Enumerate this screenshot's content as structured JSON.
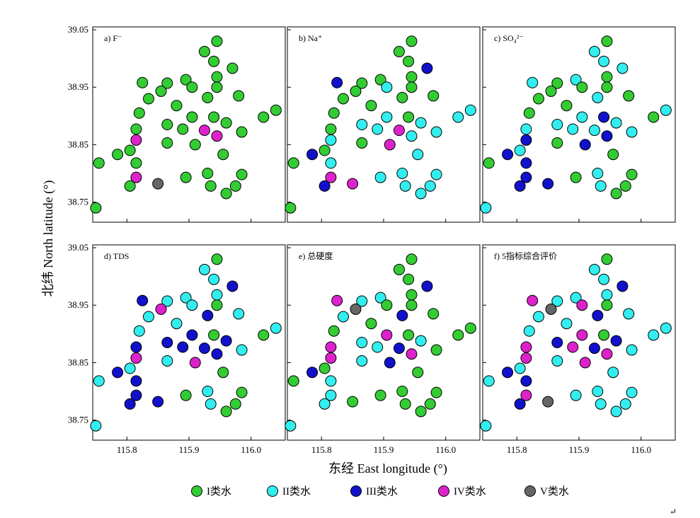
{
  "chart_data": {
    "type": "scatter",
    "xlabel": "东经 East longitude (°)",
    "ylabel": "北纬 North latitude (°)",
    "xlim": [
      115.745,
      116.055
    ],
    "ylim": [
      38.715,
      39.055
    ],
    "x_ticks": [
      "115.8",
      "115.9",
      "116.0"
    ],
    "y_ticks": [
      "38.75",
      "38.85",
      "38.95",
      "39.05"
    ],
    "classes": [
      {
        "name": "I类水",
        "color": "#33cc33"
      },
      {
        "name": "II类水",
        "color": "#33eeee"
      },
      {
        "name": "III类水",
        "color": "#1111cc"
      },
      {
        "name": "IV类水",
        "color": "#dd22cc"
      },
      {
        "name": "V类水",
        "color": "#666666"
      }
    ],
    "points": [
      [
        115.945,
        39.03
      ],
      [
        115.925,
        39.012
      ],
      [
        115.94,
        38.995
      ],
      [
        115.97,
        38.983
      ],
      [
        115.945,
        38.968
      ],
      [
        115.895,
        38.963
      ],
      [
        115.825,
        38.958
      ],
      [
        115.865,
        38.957
      ],
      [
        115.945,
        38.95
      ],
      [
        115.905,
        38.95
      ],
      [
        115.855,
        38.943
      ],
      [
        115.98,
        38.935
      ],
      [
        115.93,
        38.932
      ],
      [
        115.835,
        38.93
      ],
      [
        115.88,
        38.918
      ],
      [
        115.82,
        38.905
      ],
      [
        116.04,
        38.91
      ],
      [
        115.905,
        38.898
      ],
      [
        115.94,
        38.898
      ],
      [
        116.02,
        38.898
      ],
      [
        115.865,
        38.885
      ],
      [
        115.96,
        38.888
      ],
      [
        115.815,
        38.877
      ],
      [
        115.89,
        38.877
      ],
      [
        115.925,
        38.875
      ],
      [
        115.985,
        38.872
      ],
      [
        115.945,
        38.865
      ],
      [
        115.815,
        38.858
      ],
      [
        115.865,
        38.853
      ],
      [
        115.91,
        38.85
      ],
      [
        115.805,
        38.84
      ],
      [
        115.785,
        38.833
      ],
      [
        115.955,
        38.833
      ],
      [
        115.755,
        38.818
      ],
      [
        115.815,
        38.818
      ],
      [
        115.93,
        38.8
      ],
      [
        115.895,
        38.793
      ],
      [
        115.985,
        38.798
      ],
      [
        115.815,
        38.793
      ],
      [
        115.85,
        38.782
      ],
      [
        115.805,
        38.778
      ],
      [
        115.935,
        38.778
      ],
      [
        115.975,
        38.778
      ],
      [
        115.96,
        38.765
      ],
      [
        115.75,
        38.74
      ]
    ],
    "panels": [
      {
        "label": "a) F⁻",
        "classes": [
          0,
          0,
          0,
          0,
          0,
          0,
          0,
          0,
          0,
          0,
          0,
          0,
          0,
          0,
          0,
          0,
          0,
          0,
          0,
          0,
          0,
          0,
          0,
          0,
          3,
          0,
          3,
          3,
          0,
          0,
          0,
          0,
          0,
          0,
          0,
          0,
          0,
          0,
          3,
          4,
          0,
          0,
          0,
          0,
          0
        ]
      },
      {
        "label": "b) Na⁺",
        "classes": [
          0,
          0,
          0,
          2,
          0,
          0,
          2,
          0,
          0,
          1,
          0,
          0,
          0,
          0,
          0,
          0,
          1,
          1,
          0,
          1,
          1,
          1,
          0,
          1,
          3,
          1,
          1,
          1,
          0,
          3,
          0,
          2,
          1,
          0,
          1,
          1,
          1,
          1,
          3,
          3,
          2,
          1,
          1,
          1,
          0
        ]
      },
      {
        "label": "c) SO₄²⁻",
        "classes": [
          0,
          1,
          1,
          1,
          0,
          1,
          1,
          0,
          0,
          0,
          0,
          0,
          1,
          0,
          0,
          0,
          1,
          1,
          2,
          0,
          1,
          1,
          1,
          1,
          1,
          1,
          2,
          2,
          0,
          2,
          1,
          2,
          0,
          0,
          2,
          1,
          0,
          0,
          2,
          2,
          2,
          1,
          0,
          0,
          1
        ]
      },
      {
        "label": "d) TDS",
        "classes": [
          0,
          1,
          1,
          2,
          1,
          1,
          2,
          1,
          0,
          1,
          3,
          1,
          2,
          1,
          1,
          1,
          1,
          2,
          0,
          0,
          2,
          2,
          2,
          2,
          2,
          1,
          2,
          3,
          1,
          3,
          1,
          2,
          0,
          1,
          2,
          1,
          0,
          0,
          2,
          2,
          2,
          1,
          0,
          0,
          1
        ]
      },
      {
        "label": "e) 总硬度",
        "classes": [
          0,
          0,
          0,
          2,
          0,
          1,
          3,
          1,
          0,
          0,
          4,
          0,
          2,
          1,
          0,
          0,
          0,
          3,
          0,
          0,
          1,
          1,
          3,
          1,
          2,
          0,
          3,
          3,
          1,
          2,
          0,
          2,
          0,
          0,
          1,
          0,
          0,
          0,
          1,
          0,
          1,
          0,
          0,
          0,
          1
        ]
      },
      {
        "label": "f) 5指标综合评价",
        "classes": [
          0,
          1,
          1,
          2,
          1,
          1,
          3,
          1,
          0,
          3,
          4,
          1,
          2,
          1,
          1,
          1,
          1,
          3,
          0,
          1,
          2,
          2,
          3,
          3,
          2,
          1,
          3,
          3,
          1,
          3,
          1,
          2,
          1,
          1,
          2,
          1,
          1,
          1,
          3,
          4,
          2,
          1,
          1,
          1,
          1
        ]
      }
    ]
  },
  "footer": {
    "return_mark": "↵"
  }
}
